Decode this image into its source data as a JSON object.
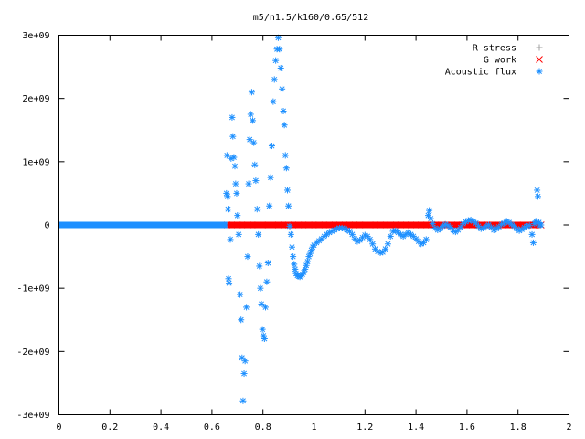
{
  "chart_data": {
    "type": "scatter",
    "title": "m5/n1.5/k160/0.65/512",
    "xlabel": "",
    "ylabel": "",
    "xlim": [
      0,
      2
    ],
    "ylim": [
      -3000000000,
      3000000000
    ],
    "x_ticks": [
      "0",
      "0.2",
      "0.4",
      "0.6",
      "0.8",
      "1",
      "1.2",
      "1.4",
      "1.6",
      "1.8",
      "2"
    ],
    "y_ticks": [
      "-3e+09",
      "-2e+09",
      "-1e+09",
      "0",
      "1e+09",
      "2e+09",
      "3e+09"
    ],
    "legend_position": "top-right",
    "series": [
      {
        "name": "R stress",
        "marker": "plus",
        "color": "#a0a0a0",
        "points": []
      },
      {
        "name": "G work",
        "marker": "x",
        "color": "#ff0000",
        "points": [
          [
            0.66,
            0
          ],
          [
            0.7,
            0
          ],
          [
            0.74,
            0
          ],
          [
            0.78,
            0
          ],
          [
            0.82,
            0
          ],
          [
            0.86,
            0
          ],
          [
            0.9,
            0
          ],
          [
            0.94,
            0
          ],
          [
            0.98,
            0
          ],
          [
            1.02,
            0
          ],
          [
            1.06,
            0
          ],
          [
            1.1,
            0
          ],
          [
            1.14,
            0
          ],
          [
            1.18,
            0
          ],
          [
            1.22,
            0
          ],
          [
            1.26,
            0
          ],
          [
            1.3,
            0
          ],
          [
            1.34,
            0
          ],
          [
            1.38,
            0
          ],
          [
            1.42,
            0
          ],
          [
            1.46,
            0
          ],
          [
            1.5,
            0
          ],
          [
            1.54,
            0
          ],
          [
            1.58,
            0
          ],
          [
            1.62,
            0
          ],
          [
            1.66,
            0
          ],
          [
            1.7,
            0
          ],
          [
            1.74,
            0
          ],
          [
            1.78,
            0
          ],
          [
            1.82,
            0
          ],
          [
            1.86,
            0
          ],
          [
            1.89,
            0
          ]
        ]
      },
      {
        "name": "Acoustic flux",
        "marker": "star",
        "color": "#1e90ff",
        "points": [
          [
            0.657,
            500000000
          ],
          [
            0.659,
            1100000000
          ],
          [
            0.661,
            450000000
          ],
          [
            0.663,
            250000000
          ],
          [
            0.665,
            -850000000
          ],
          [
            0.667,
            -920000000
          ],
          [
            0.672,
            -230000000
          ],
          [
            0.675,
            1050000000
          ],
          [
            0.679,
            1700000000
          ],
          [
            0.682,
            1400000000
          ],
          [
            0.686,
            1070000000
          ],
          [
            0.69,
            930000000
          ],
          [
            0.693,
            650000000
          ],
          [
            0.697,
            500000000
          ],
          [
            0.7,
            150000000
          ],
          [
            0.705,
            -150000000
          ],
          [
            0.71,
            -1100000000
          ],
          [
            0.714,
            -1500000000
          ],
          [
            0.718,
            -2100000000
          ],
          [
            0.722,
            -2780000000
          ],
          [
            0.726,
            -2350000000
          ],
          [
            0.73,
            -2150000000
          ],
          [
            0.735,
            -1300000000
          ],
          [
            0.74,
            -500000000
          ],
          [
            0.744,
            650000000
          ],
          [
            0.748,
            1350000000
          ],
          [
            0.752,
            1750000000
          ],
          [
            0.756,
            2100000000
          ],
          [
            0.76,
            1650000000
          ],
          [
            0.764,
            1300000000
          ],
          [
            0.768,
            950000000
          ],
          [
            0.772,
            700000000
          ],
          [
            0.777,
            250000000
          ],
          [
            0.782,
            -150000000
          ],
          [
            0.786,
            -650000000
          ],
          [
            0.79,
            -1000000000
          ],
          [
            0.794,
            -1250000000
          ],
          [
            0.798,
            -1650000000
          ],
          [
            0.802,
            -1750000000
          ],
          [
            0.806,
            -1800000000
          ],
          [
            0.81,
            -1300000000
          ],
          [
            0.815,
            -900000000
          ],
          [
            0.82,
            -600000000
          ],
          [
            0.825,
            300000000
          ],
          [
            0.83,
            750000000
          ],
          [
            0.835,
            1250000000
          ],
          [
            0.84,
            1950000000
          ],
          [
            0.845,
            2300000000
          ],
          [
            0.85,
            2600000000
          ],
          [
            0.855,
            2780000000
          ],
          [
            0.86,
            2960000000
          ],
          [
            0.865,
            2780000000
          ],
          [
            0.87,
            2480000000
          ],
          [
            0.875,
            2150000000
          ],
          [
            0.88,
            1800000000
          ],
          [
            0.884,
            1580000000
          ],
          [
            0.888,
            1100000000
          ],
          [
            0.892,
            900000000
          ],
          [
            0.896,
            550000000
          ],
          [
            0.9,
            300000000
          ],
          [
            0.905,
            -20000000
          ],
          [
            0.91,
            -150000000
          ],
          [
            0.914,
            -350000000
          ],
          [
            0.918,
            -500000000
          ],
          [
            0.922,
            -620000000
          ],
          [
            0.926,
            -700000000
          ],
          [
            0.93,
            -770000000
          ],
          [
            0.935,
            -800000000
          ],
          [
            0.94,
            -810000000
          ],
          [
            0.945,
            -820000000
          ],
          [
            0.95,
            -800000000
          ],
          [
            0.955,
            -780000000
          ],
          [
            0.96,
            -750000000
          ],
          [
            0.965,
            -700000000
          ],
          [
            0.97,
            -640000000
          ],
          [
            0.975,
            -580000000
          ],
          [
            0.98,
            -500000000
          ],
          [
            0.985,
            -450000000
          ],
          [
            0.99,
            -400000000
          ],
          [
            0.995,
            -350000000
          ],
          [
            1.0,
            -320000000
          ],
          [
            1.01,
            -280000000
          ],
          [
            1.02,
            -250000000
          ],
          [
            1.03,
            -220000000
          ],
          [
            1.04,
            -180000000
          ],
          [
            1.05,
            -150000000
          ],
          [
            1.06,
            -120000000
          ],
          [
            1.07,
            -100000000
          ],
          [
            1.08,
            -80000000
          ],
          [
            1.09,
            -60000000
          ],
          [
            1.1,
            -50000000
          ],
          [
            1.11,
            -50000000
          ],
          [
            1.12,
            -60000000
          ],
          [
            1.13,
            -80000000
          ],
          [
            1.14,
            -100000000
          ],
          [
            1.15,
            -150000000
          ],
          [
            1.16,
            -220000000
          ],
          [
            1.17,
            -260000000
          ],
          [
            1.18,
            -240000000
          ],
          [
            1.19,
            -200000000
          ],
          [
            1.2,
            -160000000
          ],
          [
            1.21,
            -180000000
          ],
          [
            1.22,
            -230000000
          ],
          [
            1.23,
            -300000000
          ],
          [
            1.24,
            -380000000
          ],
          [
            1.25,
            -420000000
          ],
          [
            1.26,
            -440000000
          ],
          [
            1.27,
            -430000000
          ],
          [
            1.28,
            -380000000
          ],
          [
            1.29,
            -300000000
          ],
          [
            1.3,
            -180000000
          ],
          [
            1.31,
            -100000000
          ],
          [
            1.32,
            -90000000
          ],
          [
            1.33,
            -120000000
          ],
          [
            1.34,
            -150000000
          ],
          [
            1.35,
            -180000000
          ],
          [
            1.36,
            -150000000
          ],
          [
            1.37,
            -120000000
          ],
          [
            1.38,
            -150000000
          ],
          [
            1.39,
            -180000000
          ],
          [
            1.4,
            -220000000
          ],
          [
            1.41,
            -260000000
          ],
          [
            1.42,
            -300000000
          ],
          [
            1.43,
            -280000000
          ],
          [
            1.44,
            -230000000
          ],
          [
            1.448,
            150000000
          ],
          [
            1.452,
            230000000
          ],
          [
            1.458,
            100000000
          ],
          [
            1.465,
            20000000
          ],
          [
            1.475,
            -50000000
          ],
          [
            1.485,
            -80000000
          ],
          [
            1.495,
            -60000000
          ],
          [
            1.505,
            -20000000
          ],
          [
            1.515,
            10000000
          ],
          [
            1.525,
            -10000000
          ],
          [
            1.535,
            -40000000
          ],
          [
            1.545,
            -80000000
          ],
          [
            1.555,
            -110000000
          ],
          [
            1.565,
            -80000000
          ],
          [
            1.575,
            -40000000
          ],
          [
            1.585,
            20000000
          ],
          [
            1.595,
            50000000
          ],
          [
            1.605,
            70000000
          ],
          [
            1.615,
            80000000
          ],
          [
            1.625,
            60000000
          ],
          [
            1.635,
            30000000
          ],
          [
            1.645,
            -20000000
          ],
          [
            1.655,
            -60000000
          ],
          [
            1.665,
            -50000000
          ],
          [
            1.675,
            -20000000
          ],
          [
            1.685,
            0
          ],
          [
            1.695,
            -40000000
          ],
          [
            1.705,
            -80000000
          ],
          [
            1.715,
            -60000000
          ],
          [
            1.725,
            -30000000
          ],
          [
            1.735,
            10000000
          ],
          [
            1.745,
            30000000
          ],
          [
            1.755,
            60000000
          ],
          [
            1.765,
            40000000
          ],
          [
            1.775,
            10000000
          ],
          [
            1.785,
            -20000000
          ],
          [
            1.795,
            -60000000
          ],
          [
            1.805,
            -90000000
          ],
          [
            1.815,
            -70000000
          ],
          [
            1.825,
            -40000000
          ],
          [
            1.835,
            -20000000
          ],
          [
            1.845,
            -10000000
          ],
          [
            1.855,
            -150000000
          ],
          [
            1.86,
            -280000000
          ],
          [
            1.865,
            20000000
          ],
          [
            1.87,
            60000000
          ],
          [
            1.875,
            550000000
          ],
          [
            1.878,
            450000000
          ],
          [
            1.882,
            40000000
          ],
          [
            1.886,
            0
          ],
          [
            1.89,
            0
          ]
        ],
        "flat_segments": [
          {
            "x_from": 0,
            "x_to": 0.66,
            "y": 0
          }
        ]
      }
    ]
  }
}
